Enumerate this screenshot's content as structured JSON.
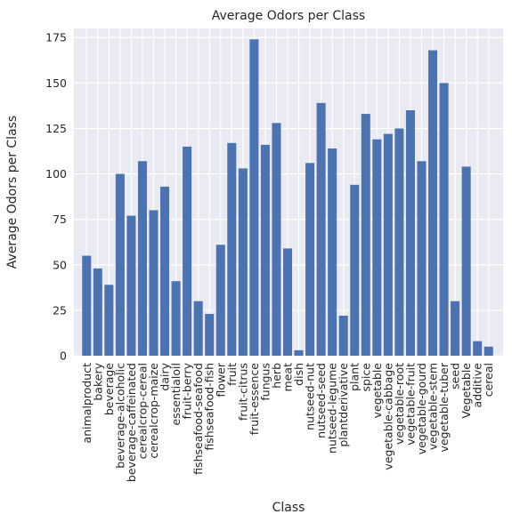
{
  "chart_data": {
    "type": "bar",
    "title": "Average Odors per Class",
    "xlabel": "Class",
    "ylabel": "Average Odors per Class",
    "ylim": [
      0,
      180
    ],
    "yticks": [
      0,
      25,
      50,
      75,
      100,
      125,
      150,
      175
    ],
    "grid": true,
    "bar_color": "#4c72b0",
    "background_color": "#eaeaf2",
    "categories": [
      "animalproduct",
      "bakery",
      "beverage",
      "beverage-alcoholic",
      "beverage-caffeinated",
      "cerealcrop-cereal",
      "cerealcrop-maize",
      "dairy",
      "essentialoil",
      "fruit-berry",
      "fishseafood-seafood",
      "fishseafood-fish",
      "flower",
      "fruit",
      "fruit-citrus",
      "fruit-essence",
      "fungus",
      "herb",
      "meat",
      "dish",
      "nutseed-nut",
      "nutseed-seed",
      "nutseed-legume",
      "plantderivative",
      "plant",
      "spice",
      "vegetable",
      "vegetable-cabbage",
      "vegetable-root",
      "vegetable-fruit",
      "vegetable-gourd",
      "vegetable-stem",
      "vegetable-tuber",
      "seed",
      "Vegetable",
      "additive",
      "cereal"
    ],
    "values": [
      55,
      48,
      39,
      100,
      77,
      107,
      80,
      93,
      41,
      115,
      30,
      23,
      61,
      117,
      103,
      174,
      116,
      128,
      59,
      3,
      106,
      139,
      114,
      22,
      94,
      133,
      119,
      122,
      125,
      135,
      107,
      168,
      150,
      30,
      104,
      8,
      5
    ]
  }
}
